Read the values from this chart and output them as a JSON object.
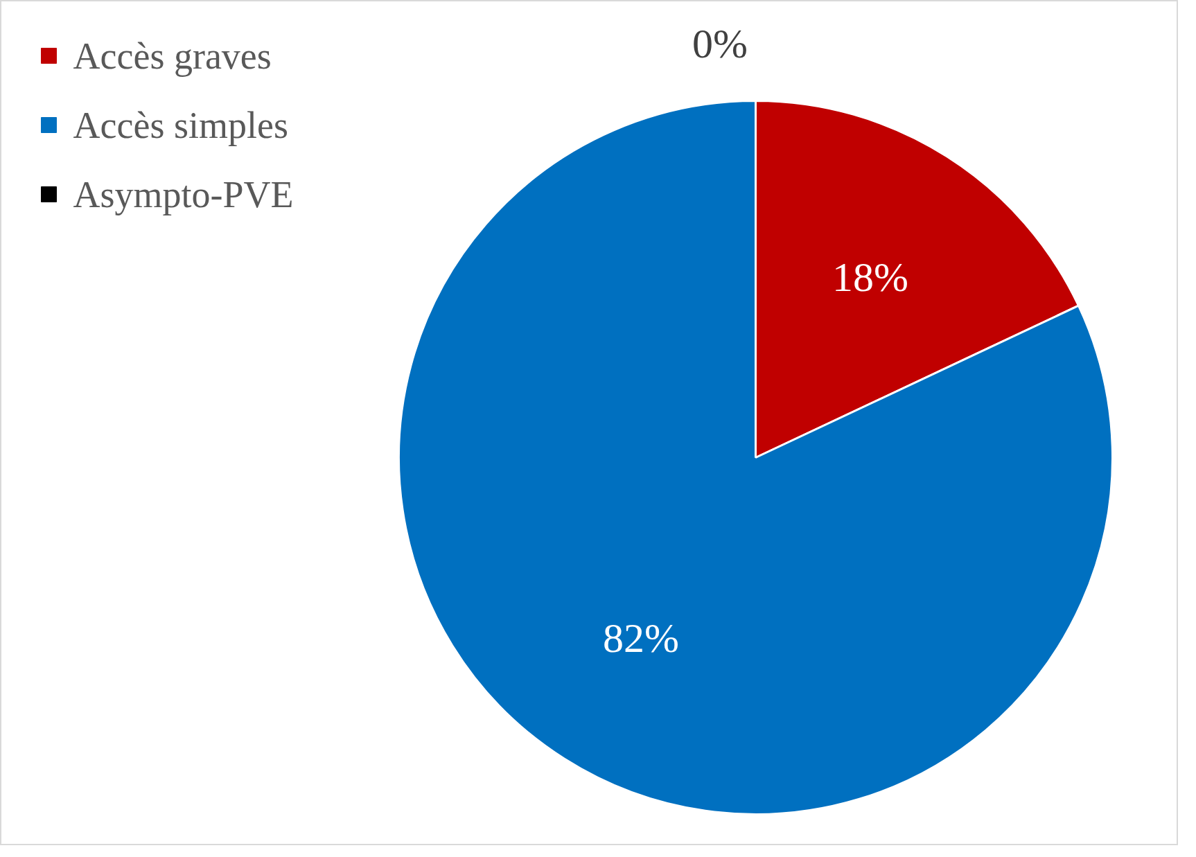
{
  "chart_data": {
    "type": "pie",
    "categories": [
      "Accès graves",
      "Accès simples",
      "Asympto-PVE"
    ],
    "values": [
      18,
      82,
      0
    ],
    "colors": [
      "#c00000",
      "#0070c0",
      "#000000"
    ],
    "value_labels": [
      "18%",
      "82%",
      "0%"
    ],
    "legend": "top left"
  }
}
